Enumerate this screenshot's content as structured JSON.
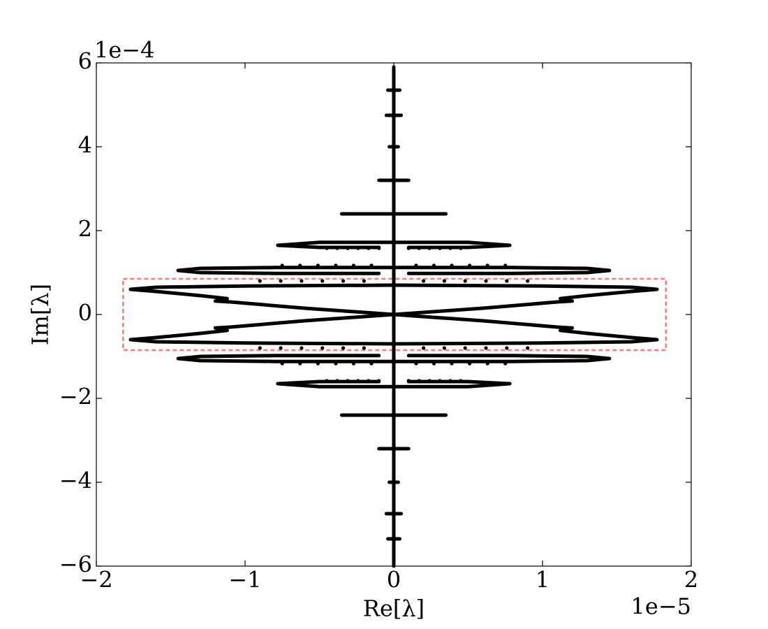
{
  "chart_data": {
    "type": "scatter",
    "xlabel": "Re[λ]",
    "ylabel": "Im[λ]",
    "x_offset_label": "1e−5",
    "y_offset_label": "1e−4",
    "color": "#000000",
    "xlim": [
      -2,
      2
    ],
    "ylim": [
      -6,
      6
    ],
    "xticks": [
      {
        "value": -2,
        "label": "−2"
      },
      {
        "value": -1,
        "label": "−1"
      },
      0,
      1,
      2
    ],
    "yticks": [
      {
        "value": -6,
        "label": "−6"
      },
      {
        "value": -4,
        "label": "−4"
      },
      {
        "value": -2,
        "label": "−2"
      },
      0,
      2,
      4,
      6
    ],
    "highlight_box": {
      "xlim": [
        -1.82,
        1.83
      ],
      "ylim": [
        -0.85,
        0.85
      ],
      "color": "#ff7777"
    },
    "series": [
      {
        "mode": "line",
        "x": [
          0,
          0
        ],
        "y": [
          -6,
          5.9
        ]
      },
      {
        "mode": "line",
        "x": [
          0,
          -1.0,
          -1.6,
          -1.77,
          -1.6,
          -1.3,
          -1.12,
          -1.2,
          -1.1,
          -0.6,
          0,
          0.6,
          1.1,
          1.2,
          1.12,
          1.3,
          1.6,
          1.77,
          1.6,
          1.0,
          0
        ],
        "y": [
          0.7,
          0.68,
          0.65,
          0.6,
          0.55,
          0.45,
          0.38,
          0.32,
          0.3,
          0.15,
          0,
          -0.15,
          -0.3,
          -0.32,
          -0.38,
          -0.45,
          -0.55,
          -0.6,
          -0.65,
          -0.68,
          -0.7
        ]
      },
      {
        "mode": "line",
        "x": [
          0,
          -1.0,
          -1.6,
          -1.77,
          -1.6,
          -1.3,
          -1.12,
          -1.2,
          -1.1,
          -0.6,
          0,
          0.6,
          1.1,
          1.2,
          1.12,
          1.3,
          1.6,
          1.77,
          1.6,
          1.0,
          0
        ],
        "y": [
          -0.7,
          -0.68,
          -0.65,
          -0.6,
          -0.55,
          -0.45,
          -0.38,
          -0.32,
          -0.3,
          -0.15,
          0,
          0.15,
          0.3,
          0.32,
          0.38,
          0.45,
          0.55,
          0.6,
          0.65,
          0.68,
          0.7
        ]
      },
      {
        "mode": "line",
        "x": [
          -0.1,
          -0.8,
          -1.3,
          -1.45,
          -1.3,
          -0.8,
          0,
          0.8,
          1.3,
          1.45,
          1.3,
          0.8,
          0.1
        ],
        "y": [
          0.98,
          0.98,
          1.0,
          1.05,
          1.1,
          1.12,
          1.12,
          1.12,
          1.1,
          1.05,
          1.0,
          0.98,
          0.98
        ]
      },
      {
        "mode": "line",
        "x": [
          -0.1,
          -0.8,
          -1.3,
          -1.45,
          -1.3,
          -0.8,
          0,
          0.8,
          1.3,
          1.45,
          1.3,
          0.8,
          0.1
        ],
        "y": [
          -0.98,
          -0.98,
          -1.0,
          -1.05,
          -1.1,
          -1.12,
          -1.12,
          -1.12,
          -1.1,
          -1.05,
          -1.0,
          -0.98,
          -0.98
        ]
      },
      {
        "mode": "line",
        "x": [
          -0.1,
          -0.5,
          -0.78,
          -0.5,
          0,
          0.5,
          0.78,
          0.5,
          0.1
        ],
        "y": [
          1.6,
          1.6,
          1.65,
          1.72,
          1.72,
          1.72,
          1.65,
          1.6,
          1.6
        ]
      },
      {
        "mode": "line",
        "x": [
          -0.1,
          -0.5,
          -0.78,
          -0.5,
          0,
          0.5,
          0.78,
          0.5,
          0.1
        ],
        "y": [
          -1.6,
          -1.6,
          -1.65,
          -1.72,
          -1.72,
          -1.72,
          -1.65,
          -1.6,
          -1.6
        ]
      },
      {
        "mode": "line",
        "x": [
          -0.35,
          0.35
        ],
        "y": [
          2.4,
          2.4
        ]
      },
      {
        "mode": "line",
        "x": [
          -0.35,
          0.35
        ],
        "y": [
          -2.4,
          -2.4
        ]
      },
      {
        "mode": "line",
        "x": [
          -0.1,
          0.1
        ],
        "y": [
          3.2,
          3.2
        ]
      },
      {
        "mode": "line",
        "x": [
          -0.1,
          0.1
        ],
        "y": [
          -3.2,
          -3.2
        ]
      },
      {
        "mode": "line",
        "x": [
          -0.03,
          0.03
        ],
        "y": [
          4,
          4
        ]
      },
      {
        "mode": "line",
        "x": [
          -0.03,
          0.03
        ],
        "y": [
          -4,
          -4
        ]
      },
      {
        "mode": "line",
        "x": [
          -0.05,
          0.05
        ],
        "y": [
          4.75,
          4.75
        ]
      },
      {
        "mode": "line",
        "x": [
          -0.05,
          0.05
        ],
        "y": [
          -4.75,
          -4.75
        ]
      },
      {
        "mode": "line",
        "x": [
          -0.04,
          0.04
        ],
        "y": [
          5.35,
          5.35
        ]
      },
      {
        "mode": "line",
        "x": [
          -0.04,
          0.04
        ],
        "y": [
          -5.35,
          -5.35
        ]
      },
      {
        "mode": "markers",
        "x": [
          -0.45,
          -0.38,
          -0.31,
          -0.24,
          -0.17,
          -0.1,
          0.1,
          0.17,
          0.24,
          0.31,
          0.38,
          0.45,
          -0.75,
          -0.63,
          -0.51,
          -0.39,
          -0.27,
          -0.15,
          0.15,
          0.27,
          0.39,
          0.51,
          0.63,
          0.75,
          -0.9,
          -0.76,
          -0.62,
          -0.48,
          -0.34,
          -0.2,
          0.2,
          0.34,
          0.48,
          0.62,
          0.76,
          0.9,
          -0.45,
          -0.38,
          -0.31,
          -0.24,
          -0.17,
          -0.1,
          0.1,
          0.17,
          0.24,
          0.31,
          0.38,
          0.45,
          -0.75,
          -0.63,
          -0.51,
          -0.39,
          -0.27,
          -0.15,
          0.15,
          0.27,
          0.39,
          0.51,
          0.63,
          0.75,
          -0.9,
          -0.76,
          -0.62,
          -0.48,
          -0.34,
          -0.2,
          0.2,
          0.34,
          0.48,
          0.62,
          0.76,
          0.9
        ],
        "y": [
          1.58,
          1.58,
          1.58,
          1.58,
          1.58,
          1.58,
          1.58,
          1.58,
          1.58,
          1.58,
          1.58,
          1.58,
          1.17,
          1.17,
          1.17,
          1.17,
          1.17,
          1.17,
          1.17,
          1.17,
          1.17,
          1.17,
          1.17,
          1.17,
          0.8,
          0.8,
          0.8,
          0.8,
          0.8,
          0.8,
          0.8,
          0.8,
          0.8,
          0.8,
          0.8,
          0.8,
          -1.58,
          -1.58,
          -1.58,
          -1.58,
          -1.58,
          -1.58,
          -1.58,
          -1.58,
          -1.58,
          -1.58,
          -1.58,
          -1.58,
          -1.17,
          -1.17,
          -1.17,
          -1.17,
          -1.17,
          -1.17,
          -1.17,
          -1.17,
          -1.17,
          -1.17,
          -1.17,
          -1.17,
          -0.8,
          -0.8,
          -0.8,
          -0.8,
          -0.8,
          -0.8,
          -0.8,
          -0.8,
          -0.8,
          -0.8,
          -0.8,
          -0.8
        ]
      }
    ]
  }
}
